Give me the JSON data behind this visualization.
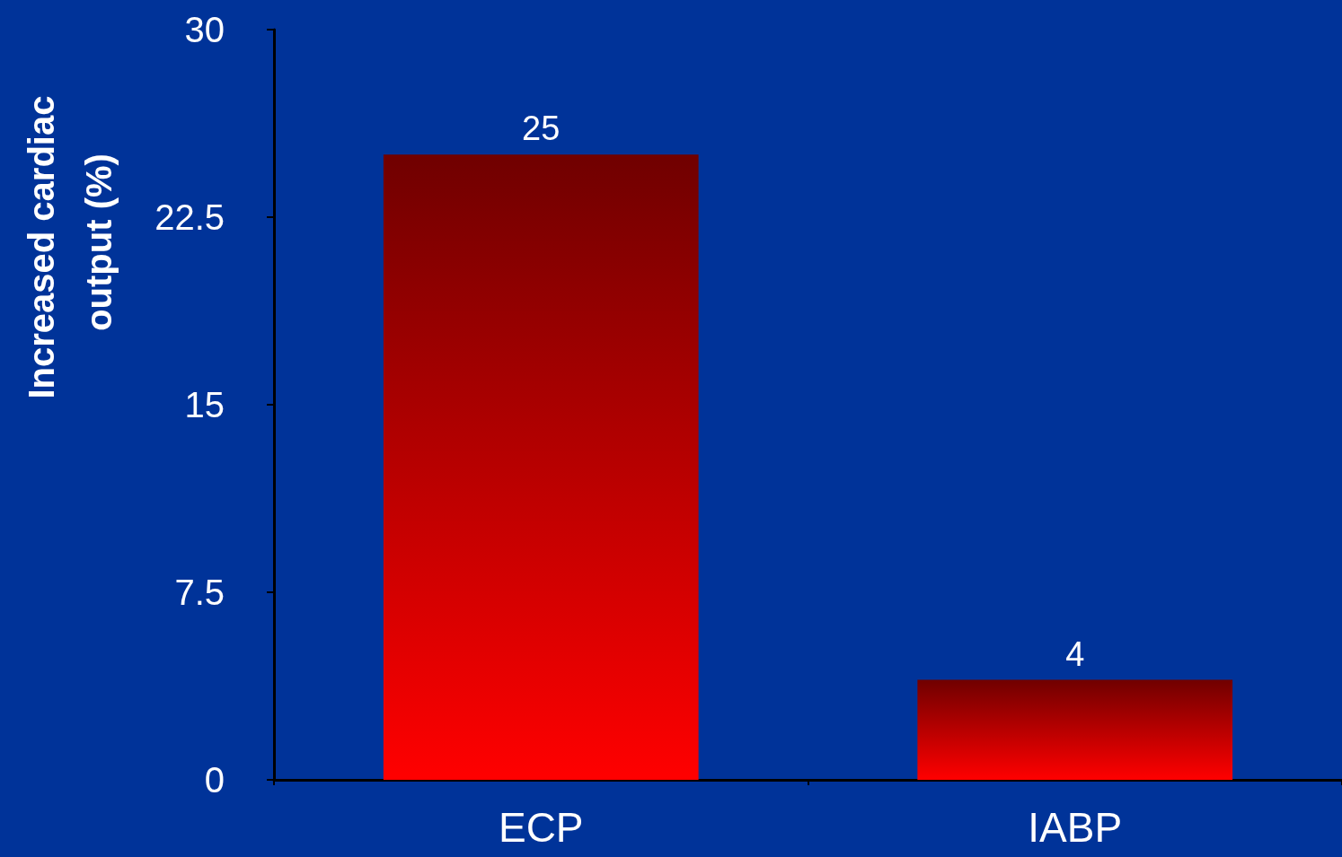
{
  "chart_data": {
    "type": "bar",
    "ylabel": "Increased cardiac output (%)",
    "categories": [
      "ECP",
      "IABP"
    ],
    "values": [
      25,
      4
    ],
    "color": "#e00000",
    "ylim": [
      0,
      30
    ],
    "yticks": [
      0,
      7.5,
      15,
      22.5,
      30
    ],
    "grid": false,
    "data_labels": true
  }
}
